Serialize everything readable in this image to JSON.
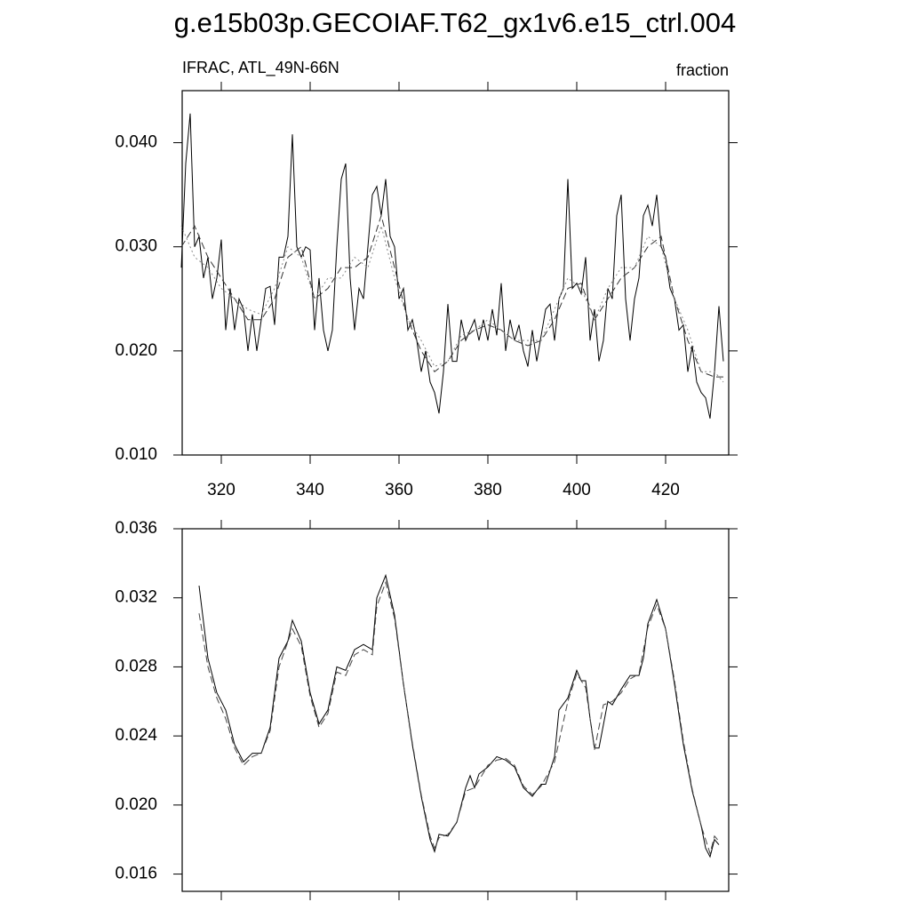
{
  "chart_data": [
    {
      "type": "line",
      "title": "g.e15b03p.GECOIAF.T62_gx1v6.e15_ctrl.004",
      "subtitle": "IFRAC, ATL_49N-66N",
      "units": "fraction",
      "xlim": [
        311.2,
        434.2
      ],
      "xticks": [
        320,
        340,
        360,
        380,
        400,
        420
      ],
      "show_xtick_labels": true,
      "ylim": [
        0.01,
        0.045
      ],
      "yticks": [
        {
          "value": 0.01,
          "label": "0.010"
        },
        {
          "value": 0.02,
          "label": "0.020"
        },
        {
          "value": 0.03,
          "label": "0.030"
        },
        {
          "value": 0.04,
          "label": "0.040"
        }
      ],
      "series": [
        {
          "color": "#000000",
          "dash": "solid",
          "x": [
            311,
            312,
            313,
            314,
            315,
            316,
            317,
            318,
            319,
            320,
            321,
            322,
            323,
            324,
            325,
            326,
            327,
            328,
            329,
            330,
            331,
            332,
            333,
            334,
            335,
            336,
            337,
            338,
            339,
            340,
            341,
            342,
            343,
            344,
            345,
            346,
            347,
            348,
            349,
            350,
            351,
            352,
            353,
            354,
            355,
            356,
            357,
            358,
            359,
            360,
            361,
            362,
            363,
            364,
            365,
            366,
            367,
            368,
            369,
            370,
            371,
            372,
            373,
            374,
            375,
            376,
            377,
            378,
            379,
            380,
            381,
            382,
            383,
            384,
            385,
            386,
            387,
            388,
            389,
            390,
            391,
            392,
            393,
            394,
            395,
            396,
            397,
            398,
            399,
            400,
            401,
            402,
            403,
            404,
            405,
            406,
            407,
            408,
            409,
            410,
            411,
            412,
            413,
            414,
            415,
            416,
            417,
            418,
            419,
            420,
            421,
            422,
            423,
            424,
            425,
            426,
            427,
            428,
            429,
            430,
            431,
            432,
            433
          ],
          "values": [
            0.028,
            0.038,
            0.0428,
            0.03,
            0.031,
            0.027,
            0.029,
            0.025,
            0.027,
            0.0307,
            0.022,
            0.026,
            0.022,
            0.025,
            0.024,
            0.02,
            0.0235,
            0.02,
            0.023,
            0.026,
            0.0262,
            0.0225,
            0.029,
            0.029,
            0.031,
            0.0408,
            0.03,
            0.029,
            0.03,
            0.0297,
            0.022,
            0.027,
            0.022,
            0.02,
            0.022,
            0.03,
            0.0365,
            0.038,
            0.027,
            0.022,
            0.026,
            0.025,
            0.03,
            0.035,
            0.0358,
            0.033,
            0.0365,
            0.031,
            0.03,
            0.025,
            0.026,
            0.022,
            0.023,
            0.021,
            0.018,
            0.02,
            0.017,
            0.016,
            0.014,
            0.018,
            0.0245,
            0.019,
            0.019,
            0.023,
            0.021,
            0.022,
            0.023,
            0.021,
            0.023,
            0.021,
            0.024,
            0.0215,
            0.0265,
            0.02,
            0.023,
            0.021,
            0.0225,
            0.02,
            0.0185,
            0.022,
            0.019,
            0.0215,
            0.024,
            0.0245,
            0.021,
            0.025,
            0.026,
            0.0365,
            0.026,
            0.0265,
            0.0255,
            0.029,
            0.021,
            0.024,
            0.019,
            0.021,
            0.026,
            0.025,
            0.033,
            0.035,
            0.025,
            0.021,
            0.025,
            0.027,
            0.033,
            0.034,
            0.032,
            0.035,
            0.03,
            0.029,
            0.026,
            0.025,
            0.022,
            0.0225,
            0.018,
            0.0205,
            0.017,
            0.016,
            0.0155,
            0.0135,
            0.018,
            0.0243,
            0.019
          ]
        },
        {
          "color": "#333333",
          "dash": "dashed",
          "x": [
            311,
            314,
            317,
            320,
            323,
            326,
            329,
            332,
            335,
            338,
            341,
            344,
            347,
            350,
            353,
            356,
            359,
            362,
            365,
            368,
            371,
            374,
            377,
            380,
            383,
            386,
            389,
            392,
            395,
            398,
            401,
            404,
            407,
            410,
            413,
            416,
            419,
            422,
            425,
            428,
            431,
            433
          ],
          "values": [
            0.03,
            0.032,
            0.029,
            0.027,
            0.025,
            0.023,
            0.023,
            0.025,
            0.029,
            0.03,
            0.025,
            0.026,
            0.028,
            0.028,
            0.029,
            0.033,
            0.028,
            0.023,
            0.02,
            0.018,
            0.019,
            0.021,
            0.022,
            0.0225,
            0.022,
            0.021,
            0.0205,
            0.021,
            0.023,
            0.026,
            0.0265,
            0.023,
            0.025,
            0.027,
            0.028,
            0.03,
            0.031,
            0.025,
            0.021,
            0.018,
            0.0175,
            0.0175
          ]
        },
        {
          "color": "#888888",
          "dash": "dotted",
          "x": [
            311,
            314,
            317,
            320,
            323,
            326,
            329,
            332,
            335,
            338,
            341,
            344,
            347,
            350,
            353,
            356,
            359,
            362,
            365,
            368,
            371,
            374,
            377,
            380,
            383,
            386,
            389,
            392,
            395,
            398,
            401,
            404,
            407,
            410,
            413,
            416,
            419,
            422,
            425,
            428,
            431,
            433
          ],
          "values": [
            0.032,
            0.029,
            0.028,
            0.026,
            0.025,
            0.024,
            0.0235,
            0.026,
            0.03,
            0.029,
            0.025,
            0.027,
            0.027,
            0.029,
            0.028,
            0.032,
            0.027,
            0.023,
            0.021,
            0.0185,
            0.019,
            0.0215,
            0.022,
            0.023,
            0.022,
            0.021,
            0.021,
            0.021,
            0.024,
            0.027,
            0.026,
            0.023,
            0.026,
            0.028,
            0.028,
            0.031,
            0.03,
            0.025,
            0.022,
            0.018,
            0.018,
            0.017
          ]
        }
      ]
    },
    {
      "type": "line",
      "xlim": [
        311.2,
        434.2
      ],
      "xticks": [
        320,
        340,
        360,
        380,
        400,
        420
      ],
      "show_xtick_labels": false,
      "ylim": [
        0.015,
        0.036
      ],
      "yticks": [
        0.016,
        {
          "value": 0.02,
          "label": "0.020"
        },
        0.024,
        0.028,
        0.032,
        0.036
      ],
      "series": [
        {
          "color": "#000000",
          "dash": "solid",
          "x": [
            315,
            317,
            319,
            321,
            323,
            325,
            327,
            329,
            331,
            333,
            335,
            336,
            338,
            340,
            342,
            344,
            346,
            348,
            350,
            352,
            354,
            355,
            357,
            359,
            361,
            363,
            365,
            367,
            368,
            369,
            371,
            373,
            375,
            376,
            377,
            378,
            380,
            382,
            384,
            386,
            388,
            390,
            392,
            393,
            395,
            396,
            398,
            400,
            401,
            402,
            403,
            404,
            405,
            407,
            408,
            410,
            412,
            414,
            415,
            416,
            418,
            420,
            422,
            424,
            426,
            428,
            429,
            430,
            431,
            432
          ],
          "values": [
            0.0327,
            0.0285,
            0.0265,
            0.0255,
            0.0235,
            0.0225,
            0.023,
            0.023,
            0.0245,
            0.0285,
            0.0295,
            0.0307,
            0.0295,
            0.0265,
            0.0247,
            0.0255,
            0.028,
            0.0278,
            0.029,
            0.0293,
            0.029,
            0.032,
            0.0333,
            0.031,
            0.027,
            0.0235,
            0.0205,
            0.018,
            0.0173,
            0.0183,
            0.0182,
            0.019,
            0.021,
            0.0217,
            0.021,
            0.0218,
            0.0222,
            0.0228,
            0.0226,
            0.0222,
            0.021,
            0.0205,
            0.0212,
            0.0212,
            0.0228,
            0.0255,
            0.0262,
            0.0278,
            0.0272,
            0.0272,
            0.025,
            0.0233,
            0.0233,
            0.026,
            0.0258,
            0.0267,
            0.0275,
            0.0275,
            0.0285,
            0.0305,
            0.0319,
            0.0302,
            0.027,
            0.0235,
            0.0208,
            0.0188,
            0.0175,
            0.017,
            0.018,
            0.0177
          ]
        },
        {
          "color": "#444444",
          "dash": "dashed",
          "x": [
            315,
            317,
            319,
            321,
            323,
            325,
            327,
            329,
            331,
            333,
            336,
            338,
            340,
            342,
            344,
            346,
            348,
            350,
            352,
            354,
            355,
            357,
            359,
            361,
            363,
            365,
            367,
            368,
            369,
            371,
            373,
            375,
            377,
            380,
            382,
            384,
            386,
            388,
            390,
            392,
            395,
            398,
            400,
            402,
            404,
            406,
            408,
            410,
            412,
            414,
            416,
            418,
            420,
            422,
            424,
            426,
            428,
            430,
            431,
            432
          ],
          "values": [
            0.0311,
            0.028,
            0.0262,
            0.025,
            0.0233,
            0.0223,
            0.0228,
            0.023,
            0.0243,
            0.028,
            0.0302,
            0.0292,
            0.0263,
            0.0245,
            0.0253,
            0.0277,
            0.0275,
            0.0287,
            0.029,
            0.0287,
            0.0315,
            0.0329,
            0.0308,
            0.027,
            0.0236,
            0.0206,
            0.0182,
            0.0175,
            0.0181,
            0.0183,
            0.019,
            0.0208,
            0.021,
            0.0223,
            0.0226,
            0.0227,
            0.0223,
            0.0211,
            0.0206,
            0.0211,
            0.0225,
            0.026,
            0.0276,
            0.0268,
            0.0232,
            0.0258,
            0.026,
            0.0265,
            0.0273,
            0.0276,
            0.0303,
            0.0316,
            0.0302,
            0.0272,
            0.0237,
            0.0209,
            0.0188,
            0.0172,
            0.0182,
            0.0179
          ]
        }
      ]
    }
  ]
}
